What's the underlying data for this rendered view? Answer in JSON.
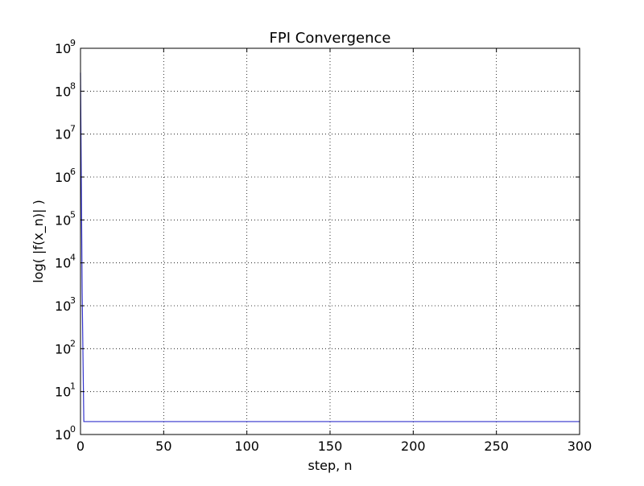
{
  "chart_data": {
    "type": "line",
    "title": "FPI Convergence",
    "xlabel": "step, n",
    "ylabel": "log( |f(x_n)| )",
    "xlim": [
      0,
      300
    ],
    "ylim": [
      1,
      1000000000
    ],
    "yscale": "log",
    "grid": true,
    "x_ticks": [
      {
        "value": 0,
        "label": "0"
      },
      {
        "value": 50,
        "label": "50"
      },
      {
        "value": 100,
        "label": "100"
      },
      {
        "value": 150,
        "label": "150"
      },
      {
        "value": 200,
        "label": "200"
      },
      {
        "value": 250,
        "label": "250"
      },
      {
        "value": 300,
        "label": "300"
      }
    ],
    "y_ticks": [
      {
        "value": 1,
        "base": "10",
        "exp": "0"
      },
      {
        "value": 10,
        "base": "10",
        "exp": "1"
      },
      {
        "value": 100,
        "base": "10",
        "exp": "2"
      },
      {
        "value": 1000,
        "base": "10",
        "exp": "3"
      },
      {
        "value": 10000,
        "base": "10",
        "exp": "4"
      },
      {
        "value": 100000,
        "base": "10",
        "exp": "5"
      },
      {
        "value": 1000000,
        "base": "10",
        "exp": "6"
      },
      {
        "value": 10000000,
        "base": "10",
        "exp": "7"
      },
      {
        "value": 100000000,
        "base": "10",
        "exp": "8"
      },
      {
        "value": 1000000000,
        "base": "10",
        "exp": "9"
      }
    ],
    "series": [
      {
        "color": "#3333cc",
        "x": [
          0,
          1,
          2,
          3,
          300
        ],
        "y": [
          270000000,
          2000,
          2,
          2,
          2
        ]
      }
    ]
  }
}
